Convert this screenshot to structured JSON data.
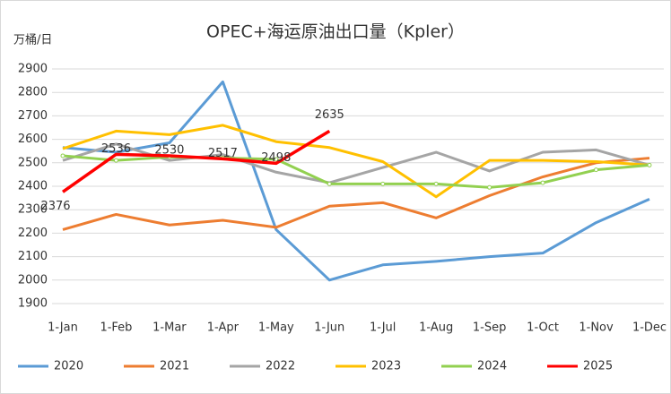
{
  "chart_data": {
    "type": "line",
    "title": "OPEC+海运原油出口量（Kpler）",
    "y_label": "万桶/日",
    "categories": [
      "1-Jan",
      "1-Feb",
      "1-Mar",
      "1-Apr",
      "1-May",
      "1-Jun",
      "1-Jul",
      "1-Aug",
      "1-Sep",
      "1-Oct",
      "1-Nov",
      "1-Dec"
    ],
    "series": [
      {
        "name": "2020",
        "color": "#5b9bd5",
        "values": [
          2565,
          2545,
          2585,
          2845,
          2215,
          2000,
          2065,
          2080,
          2100,
          2115,
          2245,
          2345
        ]
      },
      {
        "name": "2021",
        "color": "#ed7d31",
        "values": [
          2215,
          2280,
          2235,
          2255,
          2225,
          2315,
          2330,
          2265,
          2360,
          2440,
          2500,
          2520
        ]
      },
      {
        "name": "2022",
        "color": "#a5a5a5",
        "values": [
          2510,
          2580,
          2510,
          2535,
          2460,
          2415,
          2480,
          2545,
          2465,
          2545,
          2555,
          2490
        ]
      },
      {
        "name": "2023",
        "color": "#ffc000",
        "values": [
          2560,
          2635,
          2620,
          2660,
          2590,
          2565,
          2505,
          2355,
          2510,
          2510,
          2505,
          2490
        ]
      },
      {
        "name": "2024",
        "color": "#92d050",
        "marker": true,
        "values": [
          2530,
          2510,
          2525,
          2520,
          2515,
          2410,
          2410,
          2410,
          2395,
          2415,
          2470,
          2490
        ]
      },
      {
        "name": "2025",
        "color": "#ff0000",
        "show_labels": true,
        "values": [
          2376,
          2536,
          2530,
          2517,
          2498,
          2635,
          null,
          null,
          null,
          null,
          null,
          null
        ]
      }
    ],
    "ylim": [
      1900,
      2900
    ],
    "yticks": [
      1900,
      2000,
      2100,
      2200,
      2300,
      2400,
      2500,
      2600,
      2700,
      2800,
      2900
    ],
    "grid": true,
    "legend": "bottom"
  }
}
